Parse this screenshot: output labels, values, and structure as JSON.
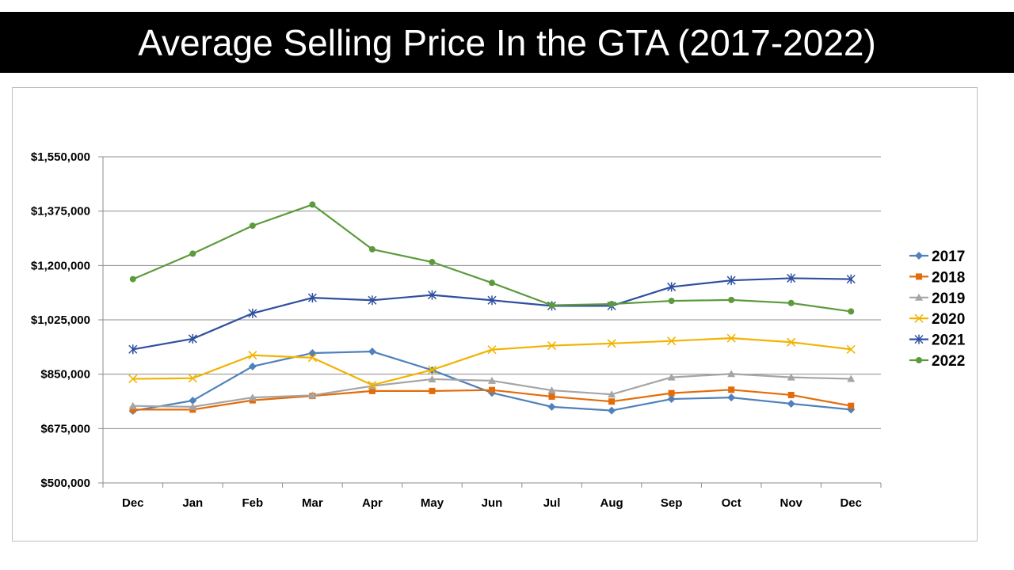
{
  "title": "Average Selling Price In the GTA (2017-2022)",
  "chart_data": {
    "type": "line",
    "title": "Average Selling Price In the GTA (2017-2022)",
    "xlabel": "",
    "ylabel": "",
    "categories": [
      "Dec",
      "Jan",
      "Feb",
      "Mar",
      "Apr",
      "May",
      "Jun",
      "Jul",
      "Aug",
      "Sep",
      "Oct",
      "Nov",
      "Dec"
    ],
    "ylim": [
      500000,
      1550000
    ],
    "yticks": [
      500000,
      675000,
      850000,
      1025000,
      1200000,
      1375000,
      1550000
    ],
    "ytick_labels": [
      "$500,000",
      "$675,000",
      "$850,000",
      "$1,025,000",
      "$1,200,000",
      "$1,375,000",
      "$1,550,000"
    ],
    "grid": true,
    "legend": "right",
    "series": [
      {
        "name": "2017",
        "color": "#4f81bd",
        "marker": "diamond",
        "values": [
          732000,
          765000,
          875000,
          918000,
          923000,
          863000,
          790000,
          745000,
          733000,
          770000,
          775000,
          755000,
          736000
        ]
      },
      {
        "name": "2018",
        "color": "#e36c0a",
        "marker": "square",
        "values": [
          736000,
          736000,
          766000,
          780000,
          796000,
          796000,
          799000,
          778000,
          762000,
          789000,
          800000,
          783000,
          748000
        ]
      },
      {
        "name": "2019",
        "color": "#a5a5a5",
        "marker": "triangle",
        "values": [
          748000,
          745000,
          775000,
          782000,
          812000,
          834000,
          829000,
          798000,
          785000,
          840000,
          851000,
          840000,
          835000
        ]
      },
      {
        "name": "2020",
        "color": "#f2b300",
        "marker": "x",
        "values": [
          835000,
          837000,
          911000,
          903000,
          815000,
          864000,
          929000,
          942000,
          949000,
          957000,
          966000,
          953000,
          930000
        ]
      },
      {
        "name": "2021",
        "color": "#2f4f9f",
        "marker": "star",
        "values": [
          930000,
          964000,
          1046000,
          1096000,
          1088000,
          1105000,
          1088000,
          1070000,
          1070000,
          1131000,
          1152000,
          1159000,
          1156000
        ]
      },
      {
        "name": "2022",
        "color": "#5c9a3c",
        "marker": "circle",
        "values": [
          1156000,
          1238000,
          1328000,
          1396000,
          1252000,
          1211000,
          1144000,
          1072000,
          1076000,
          1086000,
          1089000,
          1079000,
          1052000
        ]
      }
    ]
  }
}
